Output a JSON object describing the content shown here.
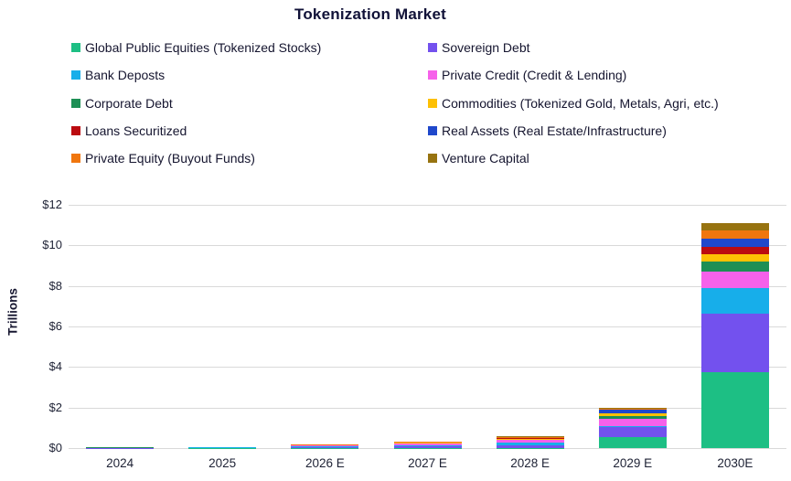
{
  "title": "Tokenization Market",
  "colors": {
    "background": "#ffffff",
    "title_text": "#111238",
    "legend_text": "#15152f",
    "axis_text": "#1d2134",
    "gridline": "#d9d9d9"
  },
  "legend": {
    "columns": [
      [
        "Global Public Equities (Tokenized Stocks)",
        "Bank Deposts",
        "Corporate Debt",
        "Loans Securitized",
        "Private Equity (Buyout Funds)"
      ],
      [
        "Sovereign Debt",
        "Private Credit (Credit & Lending)",
        "Commodities (Tokenized Gold, Metals, Agri, etc.)",
        "Real Assets (Real Estate/Infrastructure)",
        "Venture Capital"
      ]
    ]
  },
  "y_axis": {
    "label": "Trillions",
    "tick_labels": [
      "$0",
      "$2",
      "$4",
      "$6",
      "$8",
      "$10",
      "$12"
    ],
    "tick_values": [
      0,
      2,
      4,
      6,
      8,
      10,
      12
    ]
  },
  "chart_data": {
    "type": "bar",
    "stacked": true,
    "title": "Tokenization Market",
    "ylabel": "Trillions",
    "ylim": [
      0,
      12
    ],
    "grid": true,
    "legend_position": "top",
    "categories": [
      "2024",
      "2025",
      "2026 E",
      "2027 E",
      "2028 E",
      "2029 E",
      "2030E"
    ],
    "series": [
      {
        "name": "Global Public Equities (Tokenized Stocks)",
        "color": "#1dbf84",
        "values": [
          0.002,
          0.005,
          0.01,
          0.015,
          0.02,
          0.55,
          3.75
        ]
      },
      {
        "name": "Sovereign Debt",
        "color": "#7351ee",
        "values": [
          0.006,
          0.012,
          0.04,
          0.07,
          0.13,
          0.5,
          2.9
        ]
      },
      {
        "name": "Bank Deposts",
        "color": "#17aeea",
        "values": [
          0.004,
          0.008,
          0.02,
          0.04,
          0.11,
          0.05,
          1.25
        ]
      },
      {
        "name": "Private Credit (Credit & Lending)",
        "color": "#f661ea",
        "values": [
          0.012,
          0.02,
          0.05,
          0.1,
          0.14,
          0.35,
          0.8
        ]
      },
      {
        "name": "Corporate Debt",
        "color": "#1d8f55",
        "values": [
          0.002,
          0.004,
          0.008,
          0.015,
          0.03,
          0.12,
          0.5
        ]
      },
      {
        "name": "Commodities (Tokenized Gold, Metals, Agri, etc.)",
        "color": "#fdc004",
        "values": [
          0.002,
          0.004,
          0.008,
          0.015,
          0.03,
          0.13,
          0.35
        ]
      },
      {
        "name": "Loans Securitized",
        "color": "#bb0b10",
        "values": [
          0.003,
          0.006,
          0.015,
          0.02,
          0.03,
          0.03,
          0.38
        ]
      },
      {
        "name": "Real Assets (Real Estate/Infrastructure)",
        "color": "#1f48cb",
        "values": [
          0.002,
          0.004,
          0.008,
          0.015,
          0.03,
          0.15,
          0.4
        ]
      },
      {
        "name": "Private Equity (Buyout Funds)",
        "color": "#f0760e",
        "values": [
          0.001,
          0.003,
          0.006,
          0.01,
          0.02,
          0.04,
          0.42
        ]
      },
      {
        "name": "Venture Capital",
        "color": "#977310",
        "values": [
          0.001,
          0.002,
          0.005,
          0.01,
          0.04,
          0.08,
          0.33
        ]
      }
    ],
    "totals": [
      0.035,
      0.068,
      0.17,
      0.31,
      0.58,
      2.0,
      11.08
    ]
  }
}
